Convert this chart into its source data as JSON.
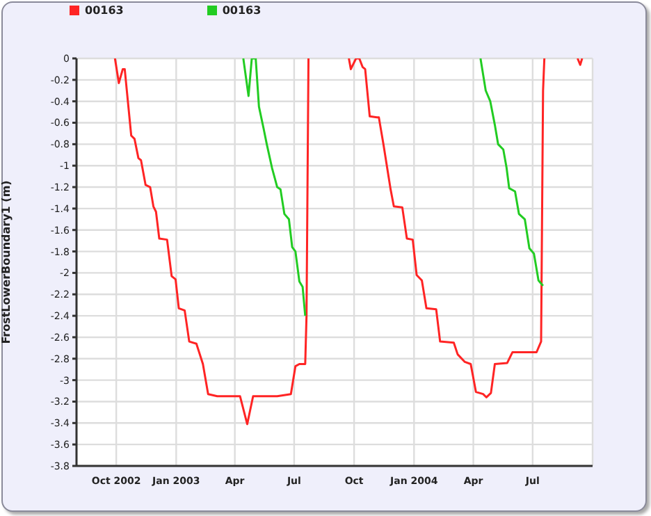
{
  "chart_data": {
    "type": "line",
    "ylabel": "FrostLowerBoundary1 (m)",
    "xlim": [
      "2002-08-01",
      "2004-10-01"
    ],
    "xticks": [
      {
        "value": "2002-10-01",
        "label": "Oct 2002"
      },
      {
        "value": "2003-01-01",
        "label": "Jan 2003"
      },
      {
        "value": "2003-04-01",
        "label": "Apr"
      },
      {
        "value": "2003-07-01",
        "label": "Jul"
      },
      {
        "value": "2003-10-01",
        "label": "Oct"
      },
      {
        "value": "2004-01-01",
        "label": "Jan 2004"
      },
      {
        "value": "2004-04-01",
        "label": "Apr"
      },
      {
        "value": "2004-07-01",
        "label": "Jul"
      }
    ],
    "ylim": [
      -3.8,
      0
    ],
    "yticks": [
      -3.8,
      -3.6,
      -3.4,
      -3.2,
      -3,
      -2.8,
      -2.6,
      -2.4,
      -2.2,
      -2,
      -1.8,
      -1.6,
      -1.4,
      -1.2,
      -1,
      -0.8,
      -0.6,
      -0.4,
      -0.2,
      0
    ],
    "grid": true,
    "legend": "top left",
    "marker": "none",
    "line_style": "solid",
    "series": [
      {
        "name": "00163",
        "color": "#ff2424",
        "x": [
          "2002-09-29",
          "2002-10-05",
          "2002-10-11",
          "2002-10-14",
          "2002-10-24",
          "2002-10-29",
          "2002-11-04",
          "2002-11-08",
          "2002-11-15",
          "2002-11-22",
          "2002-11-27",
          "2002-12-01",
          "2002-12-06",
          "2002-12-18",
          "2002-12-25",
          "2002-12-31",
          "2003-01-05",
          "2003-01-14",
          "2003-01-21",
          "2003-02-01",
          "2003-02-11",
          "2003-02-19",
          "2003-03-05",
          "2003-04-09",
          "2003-04-20",
          "2003-04-29",
          "2003-06-05",
          "2003-06-26",
          "2003-07-03",
          "2003-07-09",
          "2003-07-18",
          "2003-07-20",
          "2003-07-23",
          "2003-08-01",
          "2003-09-23",
          "2003-09-26",
          "2003-10-04",
          "2003-10-09",
          "2003-10-14",
          "2003-10-18",
          "2003-10-25",
          "2003-11-05",
          "2003-11-08",
          "2003-11-15",
          "2003-11-26",
          "2003-12-01",
          "2003-12-14",
          "2003-12-21",
          "2003-12-30",
          "2004-01-05",
          "2004-01-13",
          "2004-01-20",
          "2004-02-04",
          "2004-02-10",
          "2004-03-02",
          "2004-03-08",
          "2004-03-19",
          "2004-03-28",
          "2004-04-05",
          "2004-04-16",
          "2004-04-21",
          "2004-04-28",
          "2004-05-04",
          "2004-05-23",
          "2004-05-31",
          "2004-07-07",
          "2004-07-14",
          "2004-07-17",
          "2004-07-19",
          "2004-08-01",
          "2004-09-08",
          "2004-09-12",
          "2004-09-15"
        ],
        "values": [
          0,
          -0.23,
          -0.1,
          -0.1,
          -0.72,
          -0.75,
          -0.93,
          -0.95,
          -1.18,
          -1.2,
          -1.38,
          -1.43,
          -1.68,
          -1.69,
          -2.03,
          -2.06,
          -2.33,
          -2.35,
          -2.64,
          -2.66,
          -2.85,
          -3.13,
          -3.15,
          -3.15,
          -3.41,
          -3.15,
          -3.15,
          -3.13,
          -2.87,
          -2.85,
          -2.85,
          -2.4,
          0,
          null,
          0,
          -0.1,
          0,
          0,
          -0.08,
          -0.1,
          -0.54,
          -0.55,
          -0.55,
          -0.8,
          -1.22,
          -1.38,
          -1.39,
          -1.68,
          -1.69,
          -2.02,
          -2.07,
          -2.33,
          -2.34,
          -2.64,
          -2.65,
          -2.76,
          -2.83,
          -2.85,
          -3.11,
          -3.13,
          -3.16,
          -3.12,
          -2.85,
          -2.84,
          -2.74,
          -2.74,
          -2.64,
          -0.3,
          0,
          null,
          0,
          -0.06,
          0
        ]
      },
      {
        "name": "00163",
        "color": "#22cc22",
        "x": [
          "2003-04-14",
          "2003-04-22",
          "2003-04-27",
          "2003-05-03",
          "2003-05-08",
          "2003-05-15",
          "2003-05-20",
          "2003-05-28",
          "2003-06-05",
          "2003-06-10",
          "2003-06-16",
          "2003-06-23",
          "2003-06-28",
          "2003-07-03",
          "2003-07-09",
          "2003-07-14",
          "2003-07-18",
          "2003-08-01",
          "2004-04-12",
          "2004-04-20",
          "2004-04-27",
          "2004-05-04",
          "2004-05-09",
          "2004-05-17",
          "2004-05-22",
          "2004-05-26",
          "2004-06-04",
          "2004-06-10",
          "2004-06-19",
          "2004-06-26",
          "2004-07-03",
          "2004-07-10",
          "2004-07-17"
        ],
        "values": [
          0,
          -0.35,
          0,
          0,
          -0.45,
          -0.65,
          -0.8,
          -1.02,
          -1.2,
          -1.22,
          -1.45,
          -1.5,
          -1.76,
          -1.8,
          -2.08,
          -2.13,
          -2.4,
          null,
          0,
          -0.3,
          -0.4,
          -0.62,
          -0.8,
          -0.85,
          -1.02,
          -1.21,
          -1.24,
          -1.45,
          -1.5,
          -1.77,
          -1.82,
          -2.07,
          -2.12
        ]
      }
    ]
  }
}
